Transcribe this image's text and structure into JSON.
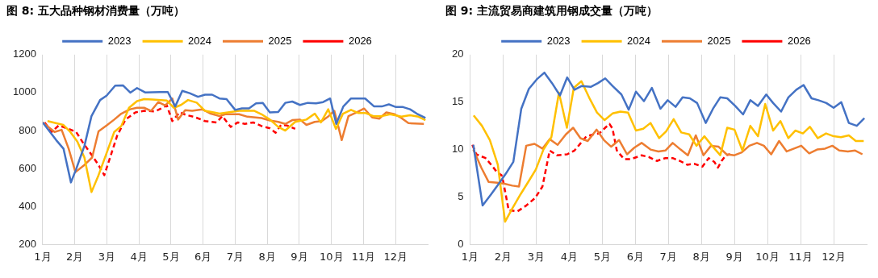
{
  "chart_data": [
    {
      "type": "line",
      "title": "图 8: 五大品种钢材消费量（万吨）",
      "marker": "none",
      "grid": "x",
      "legend": "top",
      "xlim": [
        1,
        13
      ],
      "xticks": [
        {
          "value": 1,
          "label": "1月"
        },
        {
          "value": 2,
          "label": "2月"
        },
        {
          "value": 3,
          "label": "3月"
        },
        {
          "value": 4,
          "label": "4月"
        },
        {
          "value": 5,
          "label": "5月"
        },
        {
          "value": 6,
          "label": "6月"
        },
        {
          "value": 7,
          "label": "7月"
        },
        {
          "value": 8,
          "label": "8月"
        },
        {
          "value": 9,
          "label": "9月"
        },
        {
          "value": 10,
          "label": "10月"
        },
        {
          "value": 11,
          "label": "11月"
        },
        {
          "value": 12,
          "label": "12月"
        }
      ],
      "ylim": [
        200,
        1200
      ],
      "yticks": [
        200,
        400,
        600,
        800,
        1000,
        1200
      ],
      "series": [
        {
          "name": "2023",
          "color": "#4472c4",
          "x": [
            1,
            1.42,
            1.65,
            1.88,
            2.04,
            2.3,
            2.52,
            2.79,
            2.99,
            3.26,
            3.5,
            3.73,
            3.94,
            4.19,
            4.65,
            4.9,
            5.13,
            5.35,
            5.58,
            5.84,
            6.06,
            6.28,
            6.51,
            6.73,
            7.0,
            7.21,
            7.43,
            7.65,
            7.86,
            8.08,
            8.34,
            8.56,
            8.78,
            9.02,
            9.26,
            9.52,
            9.74,
            9.96,
            10.15,
            10.37,
            10.61,
            11.05,
            11.33,
            11.57,
            11.79,
            12.01,
            12.23,
            12.45,
            12.66,
            12.93
          ],
          "values": [
            843,
            750,
            704,
            527,
            596,
            719,
            876,
            961,
            984,
            1037,
            1038,
            1000,
            1024,
            1001,
            1003,
            1003,
            927,
            1009,
            997,
            978,
            989,
            989,
            969,
            966,
            909,
            917,
            917,
            943,
            946,
            896,
            898,
            946,
            953,
            935,
            946,
            943,
            950,
            969,
            835,
            927,
            969,
            969,
            927,
            927,
            938,
            924,
            924,
            912,
            889,
            866
          ]
        },
        {
          "name": "2024",
          "color": "#ffc000",
          "x": [
            1.15,
            1.64,
            1.86,
            2.08,
            2.3,
            2.52,
            2.74,
            2.99,
            3.23,
            3.45,
            3.69,
            3.94,
            4.16,
            4.42,
            4.87,
            5.09,
            5.31,
            5.53,
            5.8,
            6.06,
            6.33,
            6.51,
            6.77,
            7.12,
            7.6,
            7.82,
            8.08,
            8.34,
            8.56,
            8.87,
            9.22,
            9.48,
            9.67,
            9.9,
            10.14,
            10.36,
            10.61,
            10.83,
            11.05,
            11.31,
            11.57,
            11.83,
            12.18,
            12.45,
            12.71,
            12.93
          ],
          "values": [
            850,
            830,
            793,
            742,
            658,
            476,
            565,
            681,
            793,
            824,
            920,
            955,
            966,
            964,
            958,
            920,
            935,
            961,
            947,
            904,
            896,
            889,
            896,
            904,
            904,
            886,
            858,
            820,
            800,
            846,
            858,
            889,
            843,
            912,
            809,
            889,
            909,
            893,
            893,
            876,
            876,
            886,
            873,
            881,
            873,
            855
          ]
        },
        {
          "name": "2025",
          "color": "#ed7d31",
          "x": [
            1,
            1.37,
            1.59,
            1.81,
            2.02,
            2.3,
            2.54,
            2.74,
            2.99,
            3.23,
            3.45,
            3.72,
            3.94,
            4.16,
            4.38,
            4.6,
            4.82,
            5.04,
            5.22,
            5.44,
            5.66,
            5.97,
            6.24,
            6.51,
            6.69,
            7.12,
            7.38,
            7.82,
            8.08,
            8.34,
            8.56,
            8.78,
            9.02,
            9.22,
            9.48,
            9.7,
            9.91,
            10.09,
            10.32,
            10.53,
            10.79,
            11.02,
            11.27,
            11.49,
            11.71,
            11.97,
            12.18,
            12.4,
            12.88
          ],
          "values": [
            843,
            793,
            804,
            704,
            581,
            619,
            658,
            796,
            827,
            858,
            889,
            912,
            920,
            920,
            904,
            950,
            932,
            969,
            858,
            907,
            904,
            912,
            889,
            876,
            886,
            886,
            873,
            866,
            853,
            846,
            835,
            855,
            858,
            830,
            846,
            850,
            876,
            904,
            750,
            876,
            896,
            916,
            869,
            863,
            896,
            886,
            866,
            839,
            835
          ]
        },
        {
          "name": "2026",
          "color": "#ff0000",
          "line_style": "dashed",
          "x": [
            1.06,
            1.28,
            1.5,
            1.81,
            2.04,
            2.26,
            2.52,
            2.74,
            2.92,
            3.1,
            3.32,
            3.58,
            3.89,
            4.16,
            4.51,
            4.69,
            4.87,
            5.04,
            5.27,
            5.49,
            5.71,
            6.06,
            6.42,
            6.6,
            6.86,
            7.08,
            7.3,
            7.56,
            7.82,
            8.08,
            8.26,
            8.43,
            8.61,
            8.87
          ],
          "values": [
            843,
            793,
            827,
            809,
            793,
            735,
            673,
            619,
            565,
            658,
            773,
            858,
            896,
            904,
            901,
            916,
            932,
            850,
            896,
            881,
            873,
            850,
            843,
            876,
            819,
            843,
            835,
            843,
            824,
            812,
            789,
            830,
            827,
            809
          ]
        }
      ]
    },
    {
      "type": "line",
      "title": "图 9: 主流贸易商建筑用钢成交量（万吨）",
      "marker": "none",
      "grid": "x",
      "legend": "top",
      "xlim": [
        1,
        13
      ],
      "xticks": [
        {
          "value": 1,
          "label": "1月"
        },
        {
          "value": 2,
          "label": "2月"
        },
        {
          "value": 3,
          "label": "3月"
        },
        {
          "value": 4,
          "label": "4月"
        },
        {
          "value": 5,
          "label": "5月"
        },
        {
          "value": 6,
          "label": "6月"
        },
        {
          "value": 7,
          "label": "7月"
        },
        {
          "value": 8,
          "label": "8月"
        },
        {
          "value": 9,
          "label": "9月"
        },
        {
          "value": 10,
          "label": "10月"
        },
        {
          "value": 11,
          "label": "11月"
        },
        {
          "value": 12,
          "label": "12月"
        }
      ],
      "ylim": [
        0,
        20
      ],
      "yticks": [
        0,
        5,
        10,
        15,
        20
      ],
      "series": [
        {
          "name": "2023",
          "color": "#4472c4",
          "x": [
            1.1,
            1.38,
            1.64,
            1.87,
            2.09,
            2.31,
            2.55,
            2.78,
            3.02,
            3.25,
            3.48,
            3.72,
            3.94,
            4.16,
            4.38,
            4.65,
            4.87,
            5.09,
            5.31,
            5.58,
            5.8,
            6.02,
            6.26,
            6.5,
            6.76,
            6.98,
            7.22,
            7.43,
            7.65,
            7.87,
            8.13,
            8.35,
            8.57,
            8.78,
            9.02,
            9.26,
            9.48,
            9.71,
            9.96,
            10.17,
            10.41,
            10.63,
            10.87,
            11.09,
            11.33,
            11.54,
            11.78,
            12.0,
            12.23,
            12.46,
            12.7,
            12.93
          ],
          "values": [
            10.5,
            4.1,
            5.3,
            6.4,
            7.5,
            8.7,
            14.3,
            16.4,
            17.4,
            18.1,
            17.0,
            15.7,
            17.6,
            16.3,
            16.7,
            16.6,
            17.0,
            17.5,
            16.7,
            15.8,
            14.2,
            16.1,
            15.1,
            16.5,
            14.3,
            15.2,
            14.5,
            15.5,
            15.4,
            14.9,
            12.8,
            14.3,
            15.5,
            15.4,
            14.6,
            13.7,
            15.2,
            14.6,
            15.8,
            14.9,
            14.0,
            15.5,
            16.3,
            16.8,
            15.4,
            15.2,
            14.9,
            14.4,
            15.0,
            12.8,
            12.5,
            13.3
          ]
        },
        {
          "name": "2024",
          "color": "#ffc000",
          "x": [
            1.11,
            1.36,
            1.6,
            1.84,
            2.06,
            2.28,
            2.53,
            2.78,
            2.99,
            3.22,
            3.46,
            3.69,
            3.93,
            4.14,
            4.37,
            4.6,
            4.84,
            5.07,
            5.31,
            5.55,
            5.78,
            6.02,
            6.24,
            6.46,
            6.72,
            6.93,
            7.16,
            7.39,
            7.63,
            7.85,
            8.09,
            8.32,
            8.57,
            8.78,
            9.0,
            9.24,
            9.48,
            9.71,
            9.93,
            10.17,
            10.39,
            10.63,
            10.84,
            11.07,
            11.28,
            11.52,
            11.77,
            12.0,
            12.22,
            12.46,
            12.67,
            12.91
          ],
          "values": [
            13.6,
            12.5,
            11.0,
            8.4,
            2.4,
            3.8,
            5.3,
            6.7,
            7.9,
            10.0,
            11.3,
            16.0,
            12.3,
            16.5,
            17.2,
            15.5,
            13.9,
            13.1,
            13.8,
            14.0,
            13.9,
            12.0,
            12.2,
            12.8,
            11.2,
            11.9,
            13.2,
            11.8,
            11.6,
            10.4,
            11.4,
            10.4,
            9.4,
            12.3,
            12.1,
            9.9,
            12.5,
            11.4,
            14.8,
            12.0,
            13.0,
            11.2,
            12.0,
            11.7,
            12.4,
            11.2,
            11.7,
            11.4,
            11.3,
            11.5,
            10.9,
            10.9
          ]
        },
        {
          "name": "2025",
          "color": "#ed7d31",
          "x": [
            1.1,
            1.34,
            1.56,
            1.82,
            2.04,
            2.28,
            2.48,
            2.7,
            2.95,
            3.19,
            3.41,
            3.65,
            3.9,
            4.12,
            4.34,
            4.56,
            4.83,
            5.05,
            5.27,
            5.51,
            5.75,
            5.97,
            6.19,
            6.46,
            6.7,
            6.91,
            7.13,
            7.37,
            7.59,
            7.83,
            8.06,
            8.29,
            8.52,
            8.76,
            9.0,
            9.22,
            9.45,
            9.68,
            9.89,
            10.11,
            10.35,
            10.58,
            10.8,
            11.02,
            11.26,
            11.5,
            11.74,
            11.96,
            12.17,
            12.43,
            12.65,
            12.87
          ],
          "values": [
            10.0,
            8.1,
            6.6,
            6.5,
            6.4,
            6.2,
            6.1,
            10.4,
            10.6,
            10.1,
            11.1,
            10.5,
            11.6,
            12.3,
            11.2,
            10.9,
            12.1,
            11.0,
            10.3,
            11.0,
            9.5,
            10.2,
            10.7,
            10.0,
            9.8,
            9.9,
            10.7,
            10.0,
            9.4,
            11.5,
            9.4,
            10.4,
            10.3,
            9.5,
            9.4,
            9.7,
            10.4,
            10.7,
            10.4,
            9.5,
            10.9,
            9.8,
            10.1,
            10.4,
            9.6,
            10.0,
            10.1,
            10.4,
            9.9,
            9.8,
            9.9,
            9.5
          ]
        },
        {
          "name": "2026",
          "color": "#ff0000",
          "line_style": "dashed",
          "x": [
            1.07,
            1.19,
            1.47,
            1.64,
            1.82,
            1.95,
            2.0,
            2.17,
            2.44,
            2.7,
            2.97,
            3.19,
            3.41,
            3.63,
            3.94,
            4.16,
            4.38,
            4.52,
            4.74,
            4.91,
            5.09,
            5.22,
            5.31,
            5.44,
            5.66,
            5.88,
            6.19,
            6.42,
            6.65,
            6.91,
            7.13,
            7.35,
            7.57,
            7.78,
            8.03,
            8.22,
            8.39,
            8.5,
            8.61,
            8.74,
            8.87
          ],
          "values": [
            10.5,
            9.5,
            9.1,
            8.4,
            7.6,
            7.3,
            6.7,
            3.6,
            3.5,
            4.1,
            4.9,
            6.1,
            9.9,
            9.4,
            9.5,
            9.9,
            10.8,
            11.4,
            11.6,
            11.7,
            12.3,
            12.7,
            12.2,
            9.9,
            9.0,
            9.0,
            9.4,
            9.2,
            8.8,
            9.1,
            9.1,
            8.8,
            8.4,
            8.5,
            8.2,
            9.1,
            8.7,
            8.1,
            8.8,
            9.4,
            9.5
          ]
        }
      ]
    }
  ]
}
